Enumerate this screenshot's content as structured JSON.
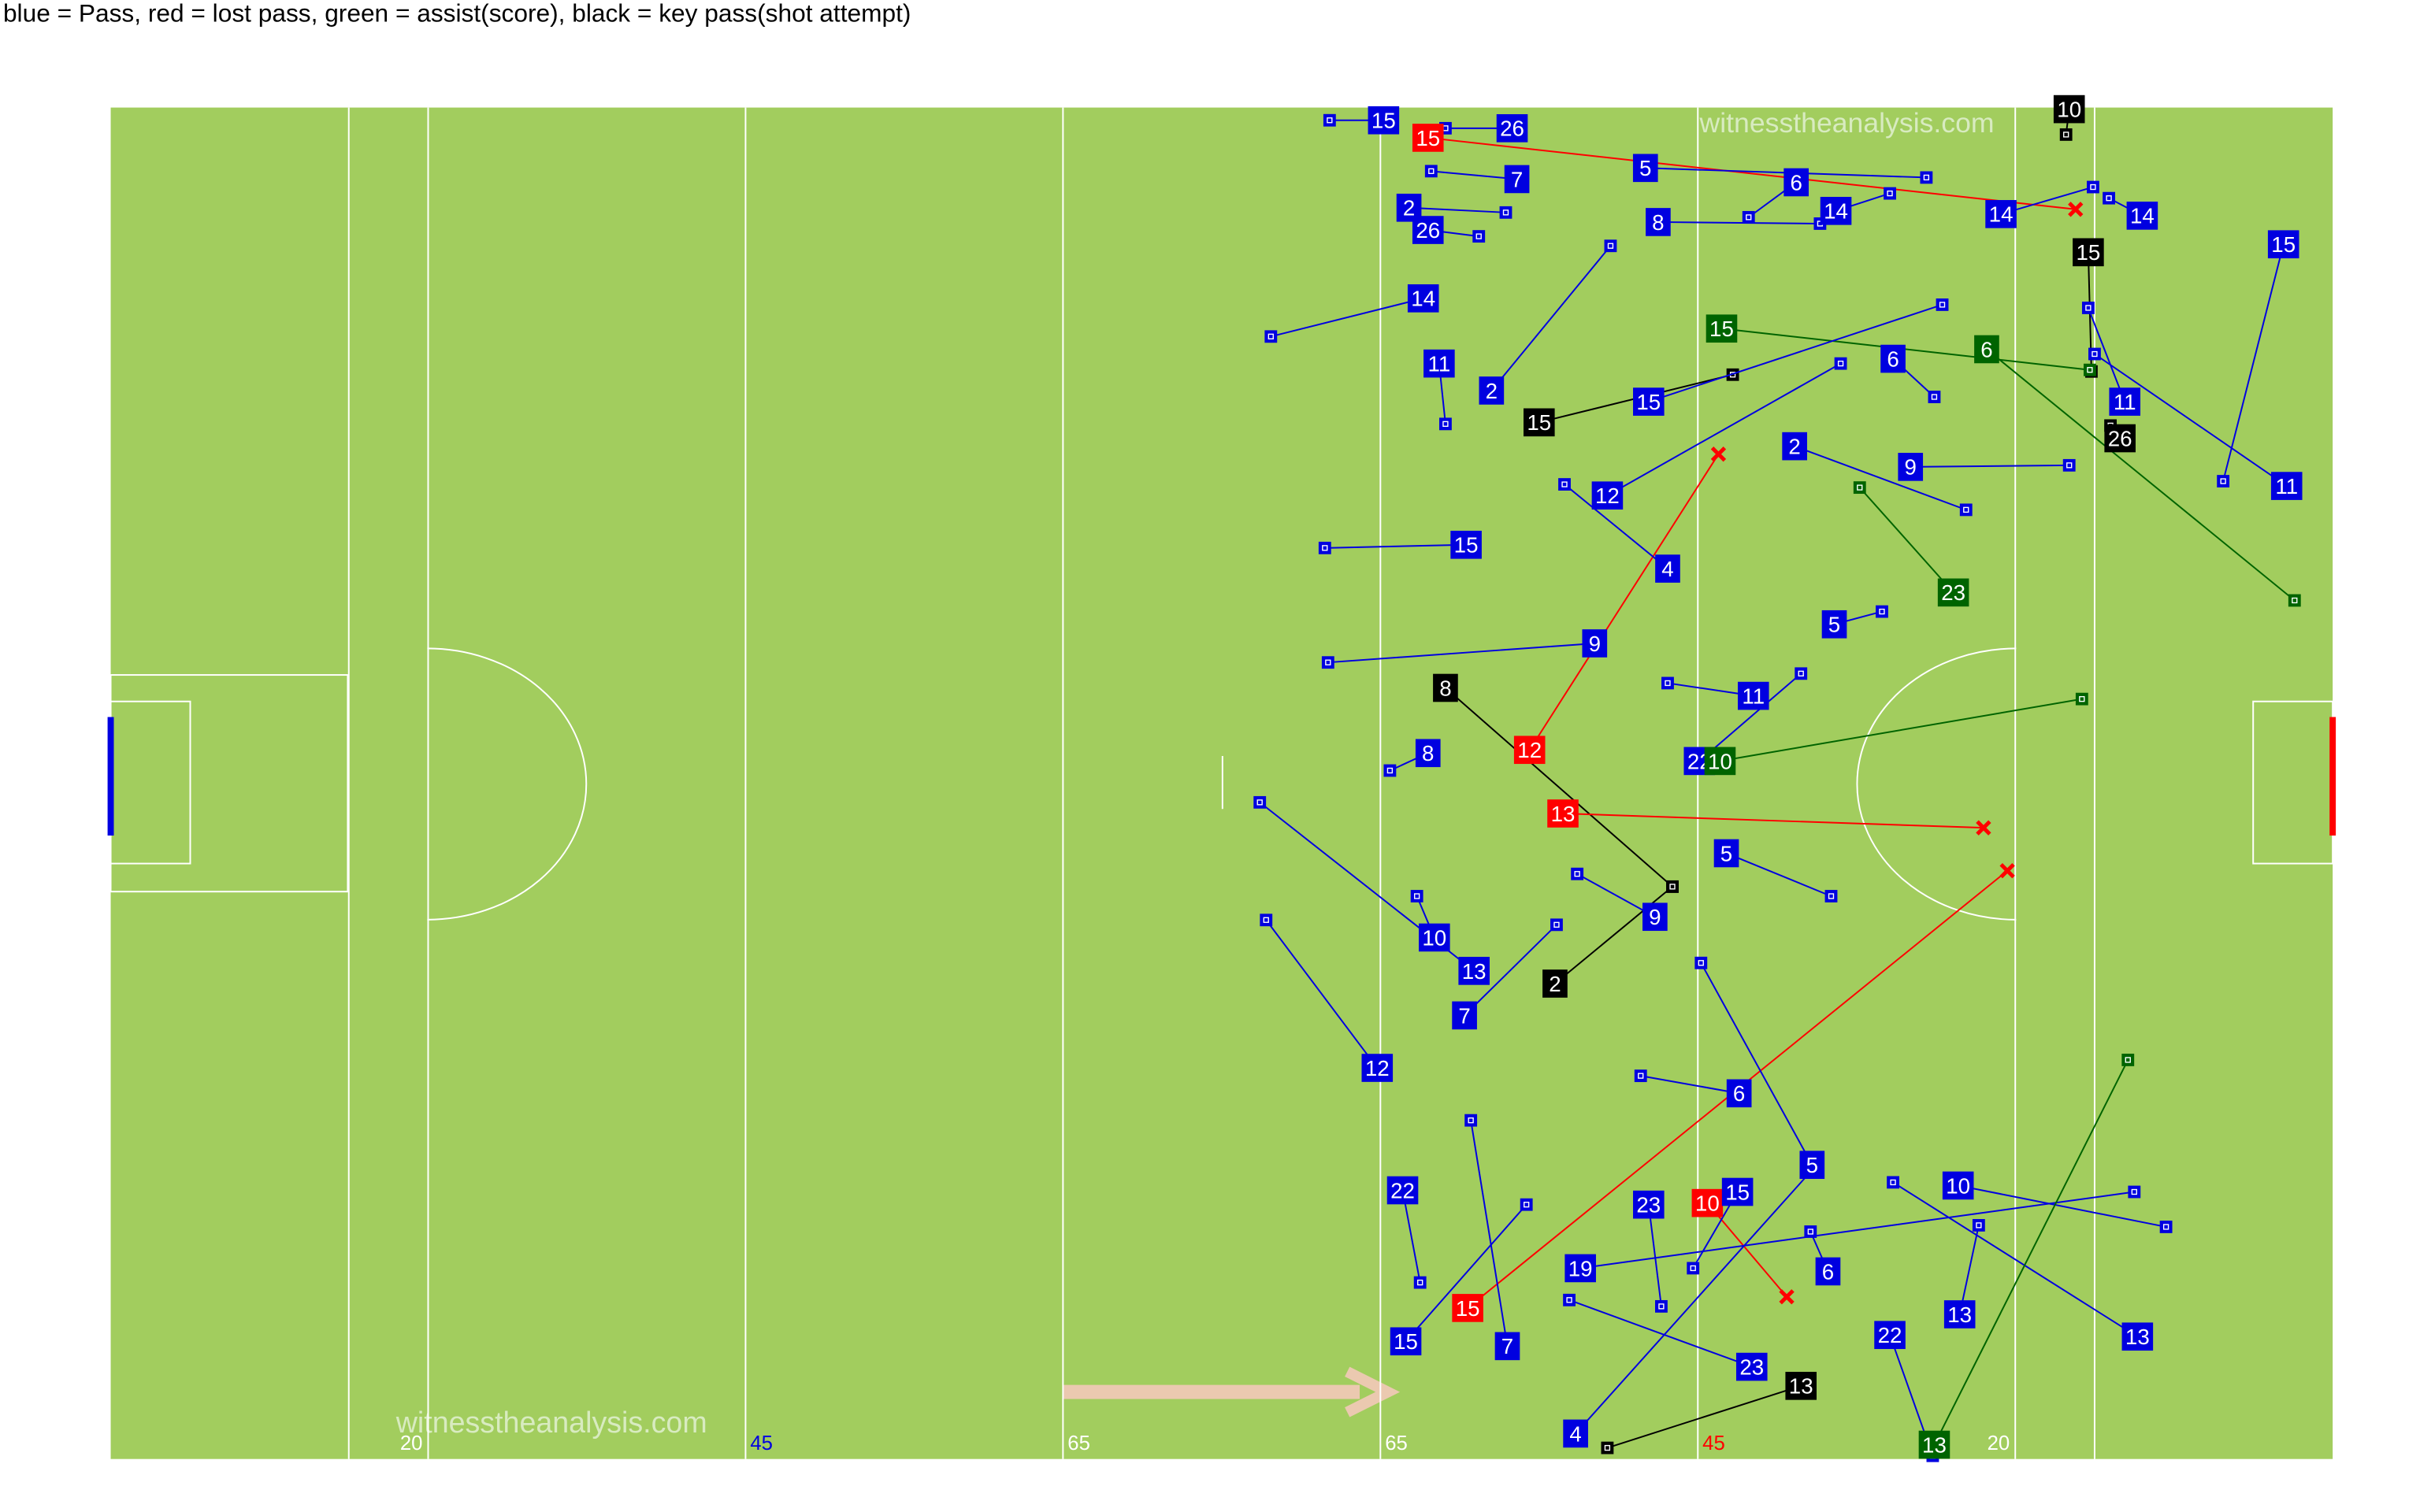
{
  "chart_data": {
    "type": "pass-map",
    "title": "blue = Pass, red = lost pass, green = assist(score), black = key pass(shot attempt)",
    "watermark": "witnesstheanalysis.com",
    "xlim": [
      0,
      140
    ],
    "ylim": [
      0,
      85
    ],
    "lines": [
      15,
      20,
      40,
      60,
      80,
      100,
      120,
      125
    ],
    "xticks": [
      {
        "value": 20,
        "label": "20",
        "color": "#ffffff"
      },
      {
        "value": 40,
        "label": "45",
        "color": "#0000e0"
      },
      {
        "value": 60,
        "label": "65",
        "color": "#ffffff"
      },
      {
        "value": 80,
        "label": "65",
        "color": "#ffffff"
      },
      {
        "value": 100,
        "label": "45",
        "color": "#ff0000"
      },
      {
        "value": 120,
        "label": "20",
        "color": "#ffffff"
      }
    ],
    "colors": {
      "pass": "#0000e0",
      "lost pass": "#ff0000",
      "assist": "#006400",
      "key pass": "#000000"
    },
    "passes": [
      {
        "player": "15",
        "kind": "pass",
        "x": [
          80.2,
          76.8
        ],
        "y": [
          0.8,
          0.8
        ]
      },
      {
        "player": "15",
        "kind": "lost pass",
        "x": [
          83.0,
          123.8
        ],
        "y": [
          1.9,
          6.4
        ]
      },
      {
        "player": "26",
        "kind": "pass",
        "x": [
          88.3,
          84.1
        ],
        "y": [
          1.3,
          1.3
        ]
      },
      {
        "player": "7",
        "kind": "pass",
        "x": [
          88.6,
          83.2
        ],
        "y": [
          4.5,
          4.0
        ]
      },
      {
        "player": "5",
        "kind": "pass",
        "x": [
          96.7,
          114.4
        ],
        "y": [
          3.8,
          4.4
        ]
      },
      {
        "player": "2",
        "kind": "pass",
        "x": [
          81.8,
          87.9
        ],
        "y": [
          6.3,
          6.6
        ]
      },
      {
        "player": "26",
        "kind": "pass",
        "x": [
          83.0,
          86.2
        ],
        "y": [
          7.7,
          8.1
        ]
      },
      {
        "player": "8",
        "kind": "pass",
        "x": [
          97.5,
          107.7
        ],
        "y": [
          7.2,
          7.3
        ]
      },
      {
        "player": "6",
        "kind": "pass",
        "x": [
          106.2,
          103.2
        ],
        "y": [
          4.7,
          6.9
        ]
      },
      {
        "player": "14",
        "kind": "pass",
        "x": [
          108.7,
          112.1
        ],
        "y": [
          6.5,
          5.4
        ]
      },
      {
        "player": "14",
        "kind": "pass",
        "x": [
          119.1,
          124.9
        ],
        "y": [
          6.7,
          5.0
        ]
      },
      {
        "player": "14",
        "kind": "pass",
        "x": [
          128.0,
          125.9
        ],
        "y": [
          6.8,
          5.7
        ]
      },
      {
        "player": "10",
        "kind": "key pass",
        "x": [
          123.4,
          123.2
        ],
        "y": [
          0.1,
          1.7
        ]
      },
      {
        "player": "15",
        "kind": "key pass",
        "x": [
          124.6,
          124.8
        ],
        "y": [
          9.1,
          16.6
        ]
      },
      {
        "player": "15",
        "kind": "pass",
        "x": [
          136.9,
          133.1
        ],
        "y": [
          8.6,
          23.5
        ]
      },
      {
        "player": "11",
        "kind": "pass",
        "x": [
          137.1,
          125.0
        ],
        "y": [
          23.8,
          15.5
        ]
      },
      {
        "player": "15",
        "kind": "assist",
        "x": [
          101.5,
          124.7
        ],
        "y": [
          13.9,
          16.5
        ]
      },
      {
        "player": "23",
        "kind": "assist",
        "x": [
          116.1,
          110.2
        ],
        "y": [
          30.5,
          23.9
        ]
      },
      {
        "player": "6",
        "kind": "assist",
        "x": [
          118.2,
          137.6
        ],
        "y": [
          15.2,
          31.0
        ]
      },
      {
        "player": "26",
        "kind": "key pass",
        "x": [
          126.6,
          126.0
        ],
        "y": [
          20.8,
          20.0
        ]
      },
      {
        "player": "15",
        "kind": "key pass",
        "x": [
          90.0,
          102.2
        ],
        "y": [
          19.8,
          16.8
        ]
      },
      {
        "player": "14",
        "kind": "pass",
        "x": [
          82.7,
          73.1
        ],
        "y": [
          12.0,
          14.4
        ]
      },
      {
        "player": "11",
        "kind": "pass",
        "x": [
          83.7,
          84.1
        ],
        "y": [
          16.1,
          19.9
        ]
      },
      {
        "player": "2",
        "kind": "pass",
        "x": [
          87.0,
          94.5
        ],
        "y": [
          17.8,
          8.7
        ]
      },
      {
        "player": "15",
        "kind": "pass",
        "x": [
          85.4,
          76.5
        ],
        "y": [
          27.5,
          27.7
        ]
      },
      {
        "player": "9",
        "kind": "pass",
        "x": [
          93.5,
          76.7
        ],
        "y": [
          33.7,
          34.9
        ]
      },
      {
        "player": "8",
        "kind": "key pass",
        "x": [
          84.1,
          98.4
        ],
        "y": [
          36.5,
          49.0
        ]
      },
      {
        "player": "12",
        "kind": "lost pass",
        "x": [
          89.4,
          101.3
        ],
        "y": [
          40.4,
          21.8
        ]
      },
      {
        "player": "13",
        "kind": "lost pass",
        "x": [
          91.5,
          118.0
        ],
        "y": [
          44.4,
          45.3
        ]
      },
      {
        "player": "8",
        "kind": "pass",
        "x": [
          83.0,
          80.6
        ],
        "y": [
          40.6,
          41.7
        ]
      },
      {
        "player": "22",
        "kind": "pass",
        "x": [
          100.1,
          106.5
        ],
        "y": [
          41.1,
          35.6
        ]
      },
      {
        "player": "10",
        "kind": "assist",
        "x": [
          101.4,
          124.2
        ],
        "y": [
          41.1,
          37.2
        ]
      },
      {
        "player": "5",
        "kind": "pass",
        "x": [
          101.8,
          108.4
        ],
        "y": [
          46.9,
          49.6
        ]
      },
      {
        "player": "9",
        "kind": "pass",
        "x": [
          97.3,
          92.4
        ],
        "y": [
          50.9,
          48.2
        ]
      },
      {
        "player": "2",
        "kind": "key pass",
        "x": [
          91.0,
          98.4
        ],
        "y": [
          55.1,
          49.0
        ]
      },
      {
        "player": "10",
        "kind": "pass",
        "x": [
          83.4,
          82.3
        ],
        "y": [
          52.2,
          49.6
        ]
      },
      {
        "player": "13",
        "kind": "pass",
        "x": [
          85.9,
          72.4
        ],
        "y": [
          54.3,
          43.7
        ]
      },
      {
        "player": "12",
        "kind": "pass",
        "x": [
          79.8,
          72.8
        ],
        "y": [
          60.4,
          51.1
        ]
      },
      {
        "player": "7",
        "kind": "pass",
        "x": [
          85.3,
          91.1
        ],
        "y": [
          57.1,
          51.4
        ]
      },
      {
        "player": "6",
        "kind": "pass",
        "x": [
          102.6,
          96.4
        ],
        "y": [
          62.0,
          60.9
        ]
      },
      {
        "player": "15",
        "kind": "lost pass",
        "x": [
          85.5,
          119.5
        ],
        "y": [
          75.5,
          48.0
        ]
      },
      {
        "player": "10",
        "kind": "lost pass",
        "x": [
          100.6,
          105.6
        ],
        "y": [
          68.9,
          74.8
        ]
      },
      {
        "player": "15",
        "kind": "pass",
        "x": [
          102.5,
          99.7
        ],
        "y": [
          68.2,
          73.0
        ]
      },
      {
        "player": "23",
        "kind": "pass",
        "x": [
          96.9,
          97.7
        ],
        "y": [
          69.0,
          75.4
        ]
      },
      {
        "player": "19",
        "kind": "pass",
        "x": [
          92.6,
          127.5
        ],
        "y": [
          73.0,
          68.2
        ]
      },
      {
        "player": "10",
        "kind": "pass",
        "x": [
          116.4,
          129.5
        ],
        "y": [
          67.8,
          70.4
        ]
      },
      {
        "player": "13",
        "kind": "pass",
        "x": [
          127.7,
          112.3
        ],
        "y": [
          77.3,
          67.6
        ]
      },
      {
        "player": "13",
        "kind": "pass",
        "x": [
          116.5,
          117.7
        ],
        "y": [
          75.9,
          70.3
        ]
      },
      {
        "player": "13",
        "kind": "key pass",
        "x": [
          106.5,
          94.3
        ],
        "y": [
          80.4,
          84.3
        ]
      },
      {
        "player": "13",
        "kind": "assist",
        "x": [
          114.9,
          127.1
        ],
        "y": [
          84.1,
          59.9
        ]
      },
      {
        "player": "22",
        "kind": "pass",
        "x": [
          112.1,
          114.8
        ],
        "y": [
          77.2,
          84.8
        ]
      },
      {
        "player": "4",
        "kind": "pass",
        "x": [
          92.3,
          107.4
        ],
        "y": [
          83.4,
          66.6
        ]
      },
      {
        "player": "23",
        "kind": "pass",
        "x": [
          103.4,
          91.9
        ],
        "y": [
          79.2,
          75.0
        ]
      },
      {
        "player": "15",
        "kind": "pass",
        "x": [
          81.6,
          89.2
        ],
        "y": [
          77.6,
          69.0
        ]
      },
      {
        "player": "7",
        "kind": "pass",
        "x": [
          88.0,
          85.7
        ],
        "y": [
          77.9,
          63.7
        ]
      },
      {
        "player": "22",
        "kind": "pass",
        "x": [
          81.4,
          82.5
        ],
        "y": [
          68.1,
          73.9
        ]
      },
      {
        "player": "5",
        "kind": "pass",
        "x": [
          107.2,
          100.2
        ],
        "y": [
          66.5,
          53.8
        ]
      },
      {
        "player": "6",
        "kind": "pass",
        "x": [
          108.2,
          107.1
        ],
        "y": [
          73.2,
          70.7
        ]
      },
      {
        "player": "9",
        "kind": "pass",
        "x": [
          113.4,
          123.4
        ],
        "y": [
          22.6,
          22.5
        ]
      },
      {
        "player": "5",
        "kind": "pass",
        "x": [
          108.6,
          111.6
        ],
        "y": [
          32.5,
          31.7
        ]
      },
      {
        "player": "11",
        "kind": "pass",
        "x": [
          103.5,
          98.1
        ],
        "y": [
          37.0,
          36.2
        ]
      },
      {
        "player": "4",
        "kind": "pass",
        "x": [
          98.1,
          91.6
        ],
        "y": [
          29.0,
          23.7
        ]
      },
      {
        "player": "12",
        "kind": "pass",
        "x": [
          94.3,
          109.0
        ],
        "y": [
          24.4,
          16.1
        ]
      },
      {
        "player": "15",
        "kind": "pass",
        "x": [
          96.9,
          115.4
        ],
        "y": [
          18.5,
          12.4
        ]
      },
      {
        "player": "2",
        "kind": "pass",
        "x": [
          106.1,
          116.9
        ],
        "y": [
          21.3,
          25.3
        ]
      },
      {
        "player": "6",
        "kind": "pass",
        "x": [
          112.3,
          114.9
        ],
        "y": [
          15.8,
          18.2
        ]
      },
      {
        "player": "11",
        "kind": "pass",
        "x": [
          126.9,
          124.6
        ],
        "y": [
          18.5,
          12.6
        ]
      }
    ]
  }
}
